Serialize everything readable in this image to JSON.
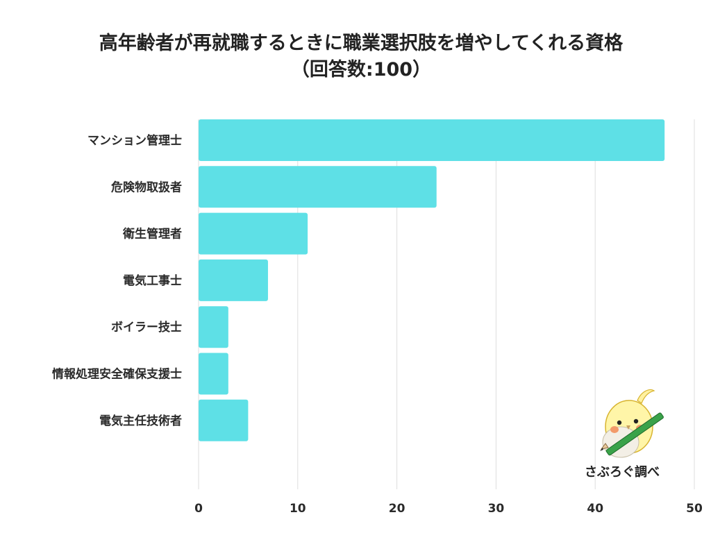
{
  "title_line1": "高年齢者が再就職するときに職業選択肢を増やしてくれる資格",
  "title_line2": "（回答数:100）",
  "credit": "さぶろぐ調べ",
  "chart_data": {
    "type": "bar",
    "orientation": "horizontal",
    "categories": [
      "マンション管理士",
      "危険物取扱者",
      "衛生管理者",
      "電気工事士",
      "ボイラー技士",
      "情報処理安全確保支援士",
      "電気主任技術者"
    ],
    "values": [
      47,
      24,
      11,
      7,
      3,
      3,
      5
    ],
    "xlim": [
      0,
      50
    ],
    "xticks": [
      0,
      10,
      20,
      30,
      40,
      50
    ],
    "grid": "vertical",
    "bar_color": "#5ee0e6",
    "grid_color": "#dddddd"
  }
}
